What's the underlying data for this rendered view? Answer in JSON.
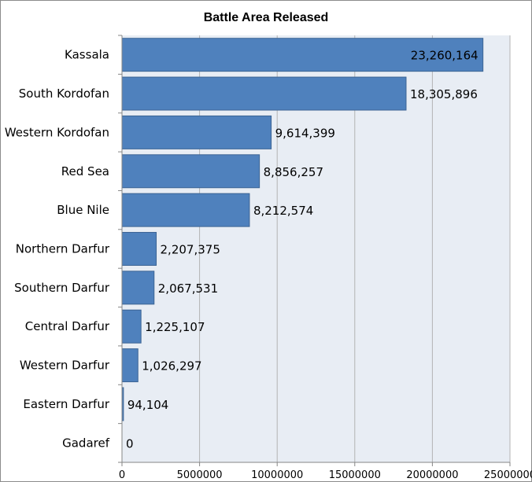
{
  "chart_data": {
    "type": "bar",
    "orientation": "horizontal",
    "title": "Battle Area Released",
    "categories": [
      "Kassala",
      "South Kordofan",
      "Western Kordofan",
      "Red Sea",
      "Blue Nile",
      "Northern Darfur",
      "Southern Darfur",
      "Central Darfur",
      "Western Darfur",
      "Eastern Darfur",
      "Gadaref"
    ],
    "values": [
      23260164,
      18305896,
      9614399,
      8856257,
      8212574,
      2207375,
      2067531,
      1225107,
      1026297,
      94104,
      0
    ],
    "value_labels": [
      "23,260,164",
      "18,305,896",
      "9,614,399",
      "8,856,257",
      "8,212,574",
      "2,207,375",
      "2,067,531",
      "1,225,107",
      "1,026,297",
      "94,104",
      "0"
    ],
    "x_ticks": [
      0,
      5000000,
      10000000,
      15000000,
      20000000,
      25000000
    ],
    "x_tick_labels": [
      "0",
      "5000000",
      "10000000",
      "15000000",
      "20000000",
      "25000000"
    ],
    "xlim": [
      0,
      25000000
    ],
    "xlabel": "",
    "ylabel": "",
    "grid": "vertical",
    "legend": "none",
    "colors": {
      "bar": "#4f81bd",
      "bar_border": "#3c6494",
      "plot_background": "#e8edf4",
      "gridline": "#b3b3b3"
    }
  }
}
